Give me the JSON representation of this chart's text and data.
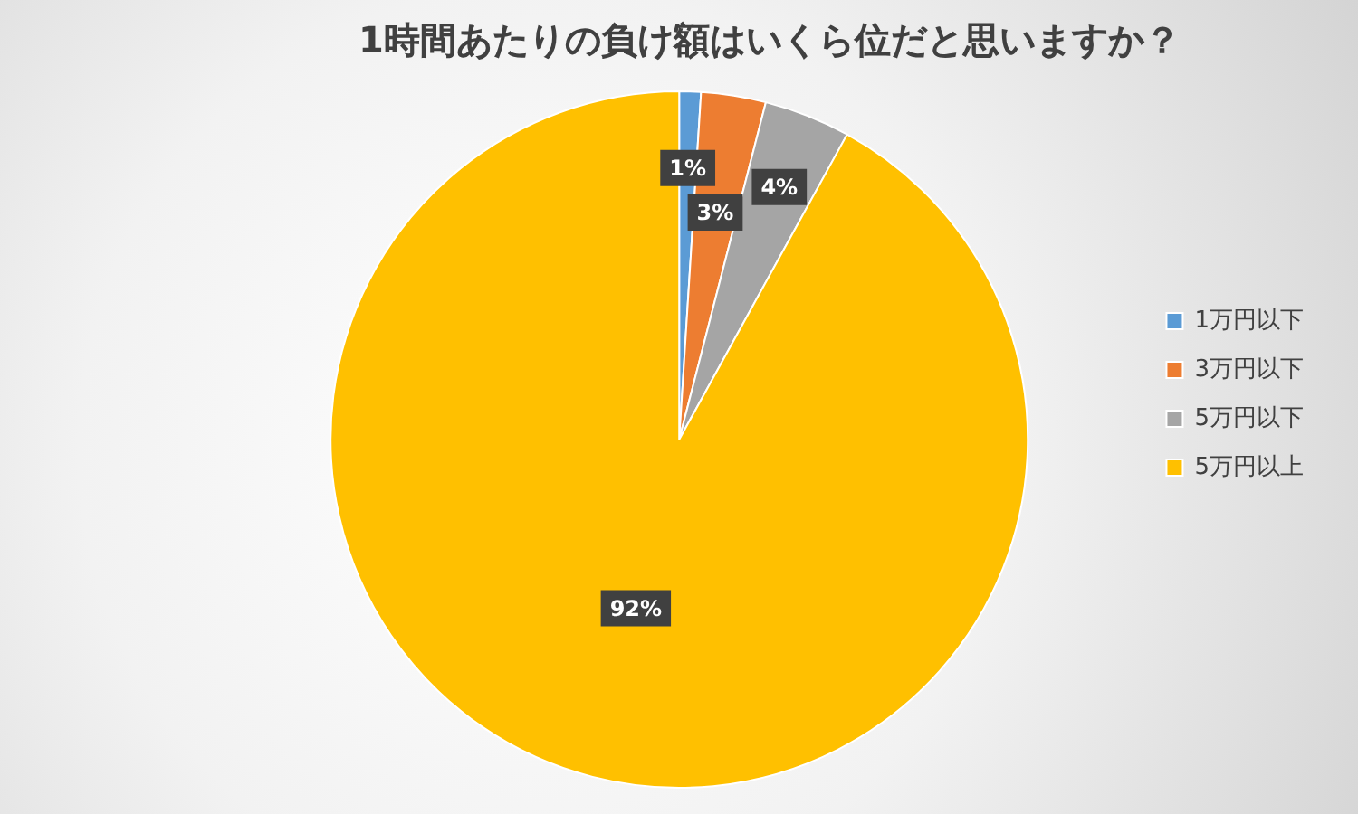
{
  "chart_data": {
    "type": "pie",
    "title": "1時間あたりの負け額はいくら位だと思いますか？",
    "categories": [
      "1万円以下",
      "3万円以下",
      "5万円以下",
      "5万円以上"
    ],
    "values": [
      1,
      3,
      4,
      92
    ],
    "colors": [
      "#5b9bd5",
      "#ed7d31",
      "#a5a5a5",
      "#ffc000"
    ],
    "value_labels": [
      "1%",
      "3%",
      "4%",
      "92%"
    ],
    "legend": "right"
  }
}
